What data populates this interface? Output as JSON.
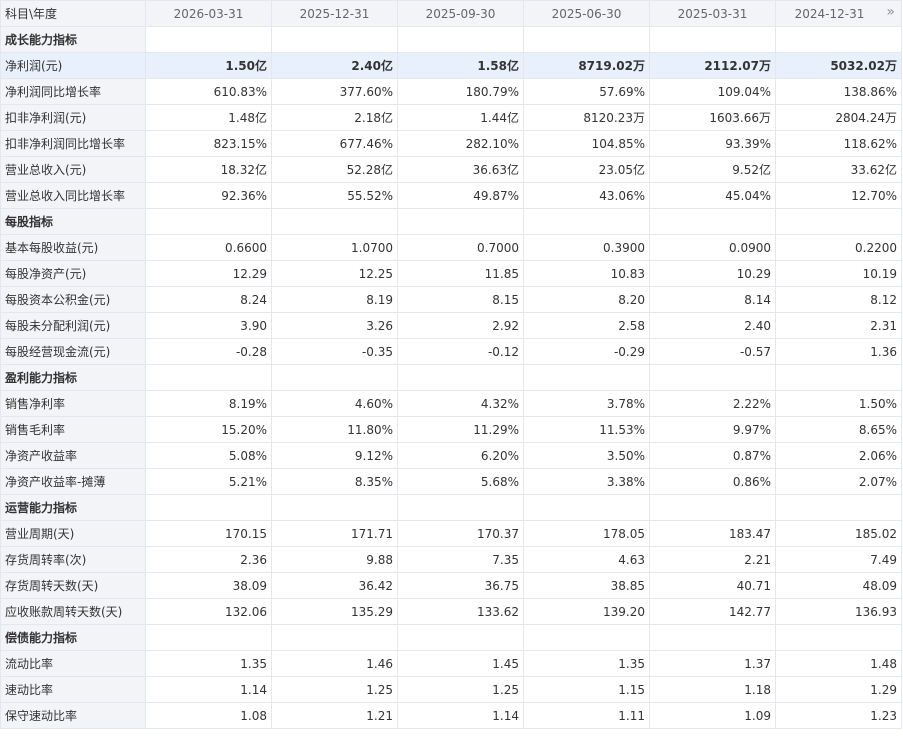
{
  "header": {
    "corner_label": "科目\\年度",
    "dates": [
      "2026-03-31",
      "2025-12-31",
      "2025-09-30",
      "2025-06-30",
      "2025-03-31",
      "2024-12-31"
    ],
    "more_icon": "double-chevron-right-icon"
  },
  "rows": [
    {
      "type": "section",
      "label": "成长能力指标",
      "values": [
        "",
        "",
        "",
        "",
        "",
        ""
      ]
    },
    {
      "type": "highlight",
      "label": "净利润(元)",
      "values": [
        "1.50亿",
        "2.40亿",
        "1.58亿",
        "8719.02万",
        "2112.07万",
        "5032.02万"
      ]
    },
    {
      "type": "data",
      "label": "净利润同比增长率",
      "values": [
        "610.83%",
        "377.60%",
        "180.79%",
        "57.69%",
        "109.04%",
        "138.86%"
      ]
    },
    {
      "type": "data",
      "label": "扣非净利润(元)",
      "values": [
        "1.48亿",
        "2.18亿",
        "1.44亿",
        "8120.23万",
        "1603.66万",
        "2804.24万"
      ]
    },
    {
      "type": "data",
      "label": "扣非净利润同比增长率",
      "values": [
        "823.15%",
        "677.46%",
        "282.10%",
        "104.85%",
        "93.39%",
        "118.62%"
      ]
    },
    {
      "type": "data",
      "label": "营业总收入(元)",
      "values": [
        "18.32亿",
        "52.28亿",
        "36.63亿",
        "23.05亿",
        "9.52亿",
        "33.62亿"
      ]
    },
    {
      "type": "data",
      "label": "营业总收入同比增长率",
      "values": [
        "92.36%",
        "55.52%",
        "49.87%",
        "43.06%",
        "45.04%",
        "12.70%"
      ]
    },
    {
      "type": "section",
      "label": "每股指标",
      "values": [
        "",
        "",
        "",
        "",
        "",
        ""
      ]
    },
    {
      "type": "data",
      "label": "基本每股收益(元)",
      "values": [
        "0.6600",
        "1.0700",
        "0.7000",
        "0.3900",
        "0.0900",
        "0.2200"
      ]
    },
    {
      "type": "data",
      "label": "每股净资产(元)",
      "values": [
        "12.29",
        "12.25",
        "11.85",
        "10.83",
        "10.29",
        "10.19"
      ]
    },
    {
      "type": "data",
      "label": "每股资本公积金(元)",
      "values": [
        "8.24",
        "8.19",
        "8.15",
        "8.20",
        "8.14",
        "8.12"
      ]
    },
    {
      "type": "data",
      "label": "每股未分配利润(元)",
      "values": [
        "3.90",
        "3.26",
        "2.92",
        "2.58",
        "2.40",
        "2.31"
      ]
    },
    {
      "type": "data",
      "label": "每股经营现金流(元)",
      "values": [
        "-0.28",
        "-0.35",
        "-0.12",
        "-0.29",
        "-0.57",
        "1.36"
      ]
    },
    {
      "type": "section",
      "label": "盈利能力指标",
      "values": [
        "",
        "",
        "",
        "",
        "",
        ""
      ]
    },
    {
      "type": "data",
      "label": "销售净利率",
      "values": [
        "8.19%",
        "4.60%",
        "4.32%",
        "3.78%",
        "2.22%",
        "1.50%"
      ]
    },
    {
      "type": "data",
      "label": "销售毛利率",
      "values": [
        "15.20%",
        "11.80%",
        "11.29%",
        "11.53%",
        "9.97%",
        "8.65%"
      ]
    },
    {
      "type": "data",
      "label": "净资产收益率",
      "values": [
        "5.08%",
        "9.12%",
        "6.20%",
        "3.50%",
        "0.87%",
        "2.06%"
      ]
    },
    {
      "type": "data",
      "label": "净资产收益率-摊薄",
      "values": [
        "5.21%",
        "8.35%",
        "5.68%",
        "3.38%",
        "0.86%",
        "2.07%"
      ]
    },
    {
      "type": "section",
      "label": "运营能力指标",
      "values": [
        "",
        "",
        "",
        "",
        "",
        ""
      ]
    },
    {
      "type": "data",
      "label": "营业周期(天)",
      "values": [
        "170.15",
        "171.71",
        "170.37",
        "178.05",
        "183.47",
        "185.02"
      ]
    },
    {
      "type": "data",
      "label": "存货周转率(次)",
      "values": [
        "2.36",
        "9.88",
        "7.35",
        "4.63",
        "2.21",
        "7.49"
      ]
    },
    {
      "type": "data",
      "label": "存货周转天数(天)",
      "values": [
        "38.09",
        "36.42",
        "36.75",
        "38.85",
        "40.71",
        "48.09"
      ]
    },
    {
      "type": "data",
      "label": "应收账款周转天数(天)",
      "values": [
        "132.06",
        "135.29",
        "133.62",
        "139.20",
        "142.77",
        "136.93"
      ]
    },
    {
      "type": "section",
      "label": "偿债能力指标",
      "values": [
        "",
        "",
        "",
        "",
        "",
        ""
      ]
    },
    {
      "type": "data",
      "label": "流动比率",
      "values": [
        "1.35",
        "1.46",
        "1.45",
        "1.35",
        "1.37",
        "1.48"
      ]
    },
    {
      "type": "data",
      "label": "速动比率",
      "values": [
        "1.14",
        "1.25",
        "1.25",
        "1.15",
        "1.18",
        "1.29"
      ]
    },
    {
      "type": "data",
      "label": "保守速动比率",
      "values": [
        "1.08",
        "1.21",
        "1.14",
        "1.11",
        "1.09",
        "1.23"
      ]
    }
  ]
}
